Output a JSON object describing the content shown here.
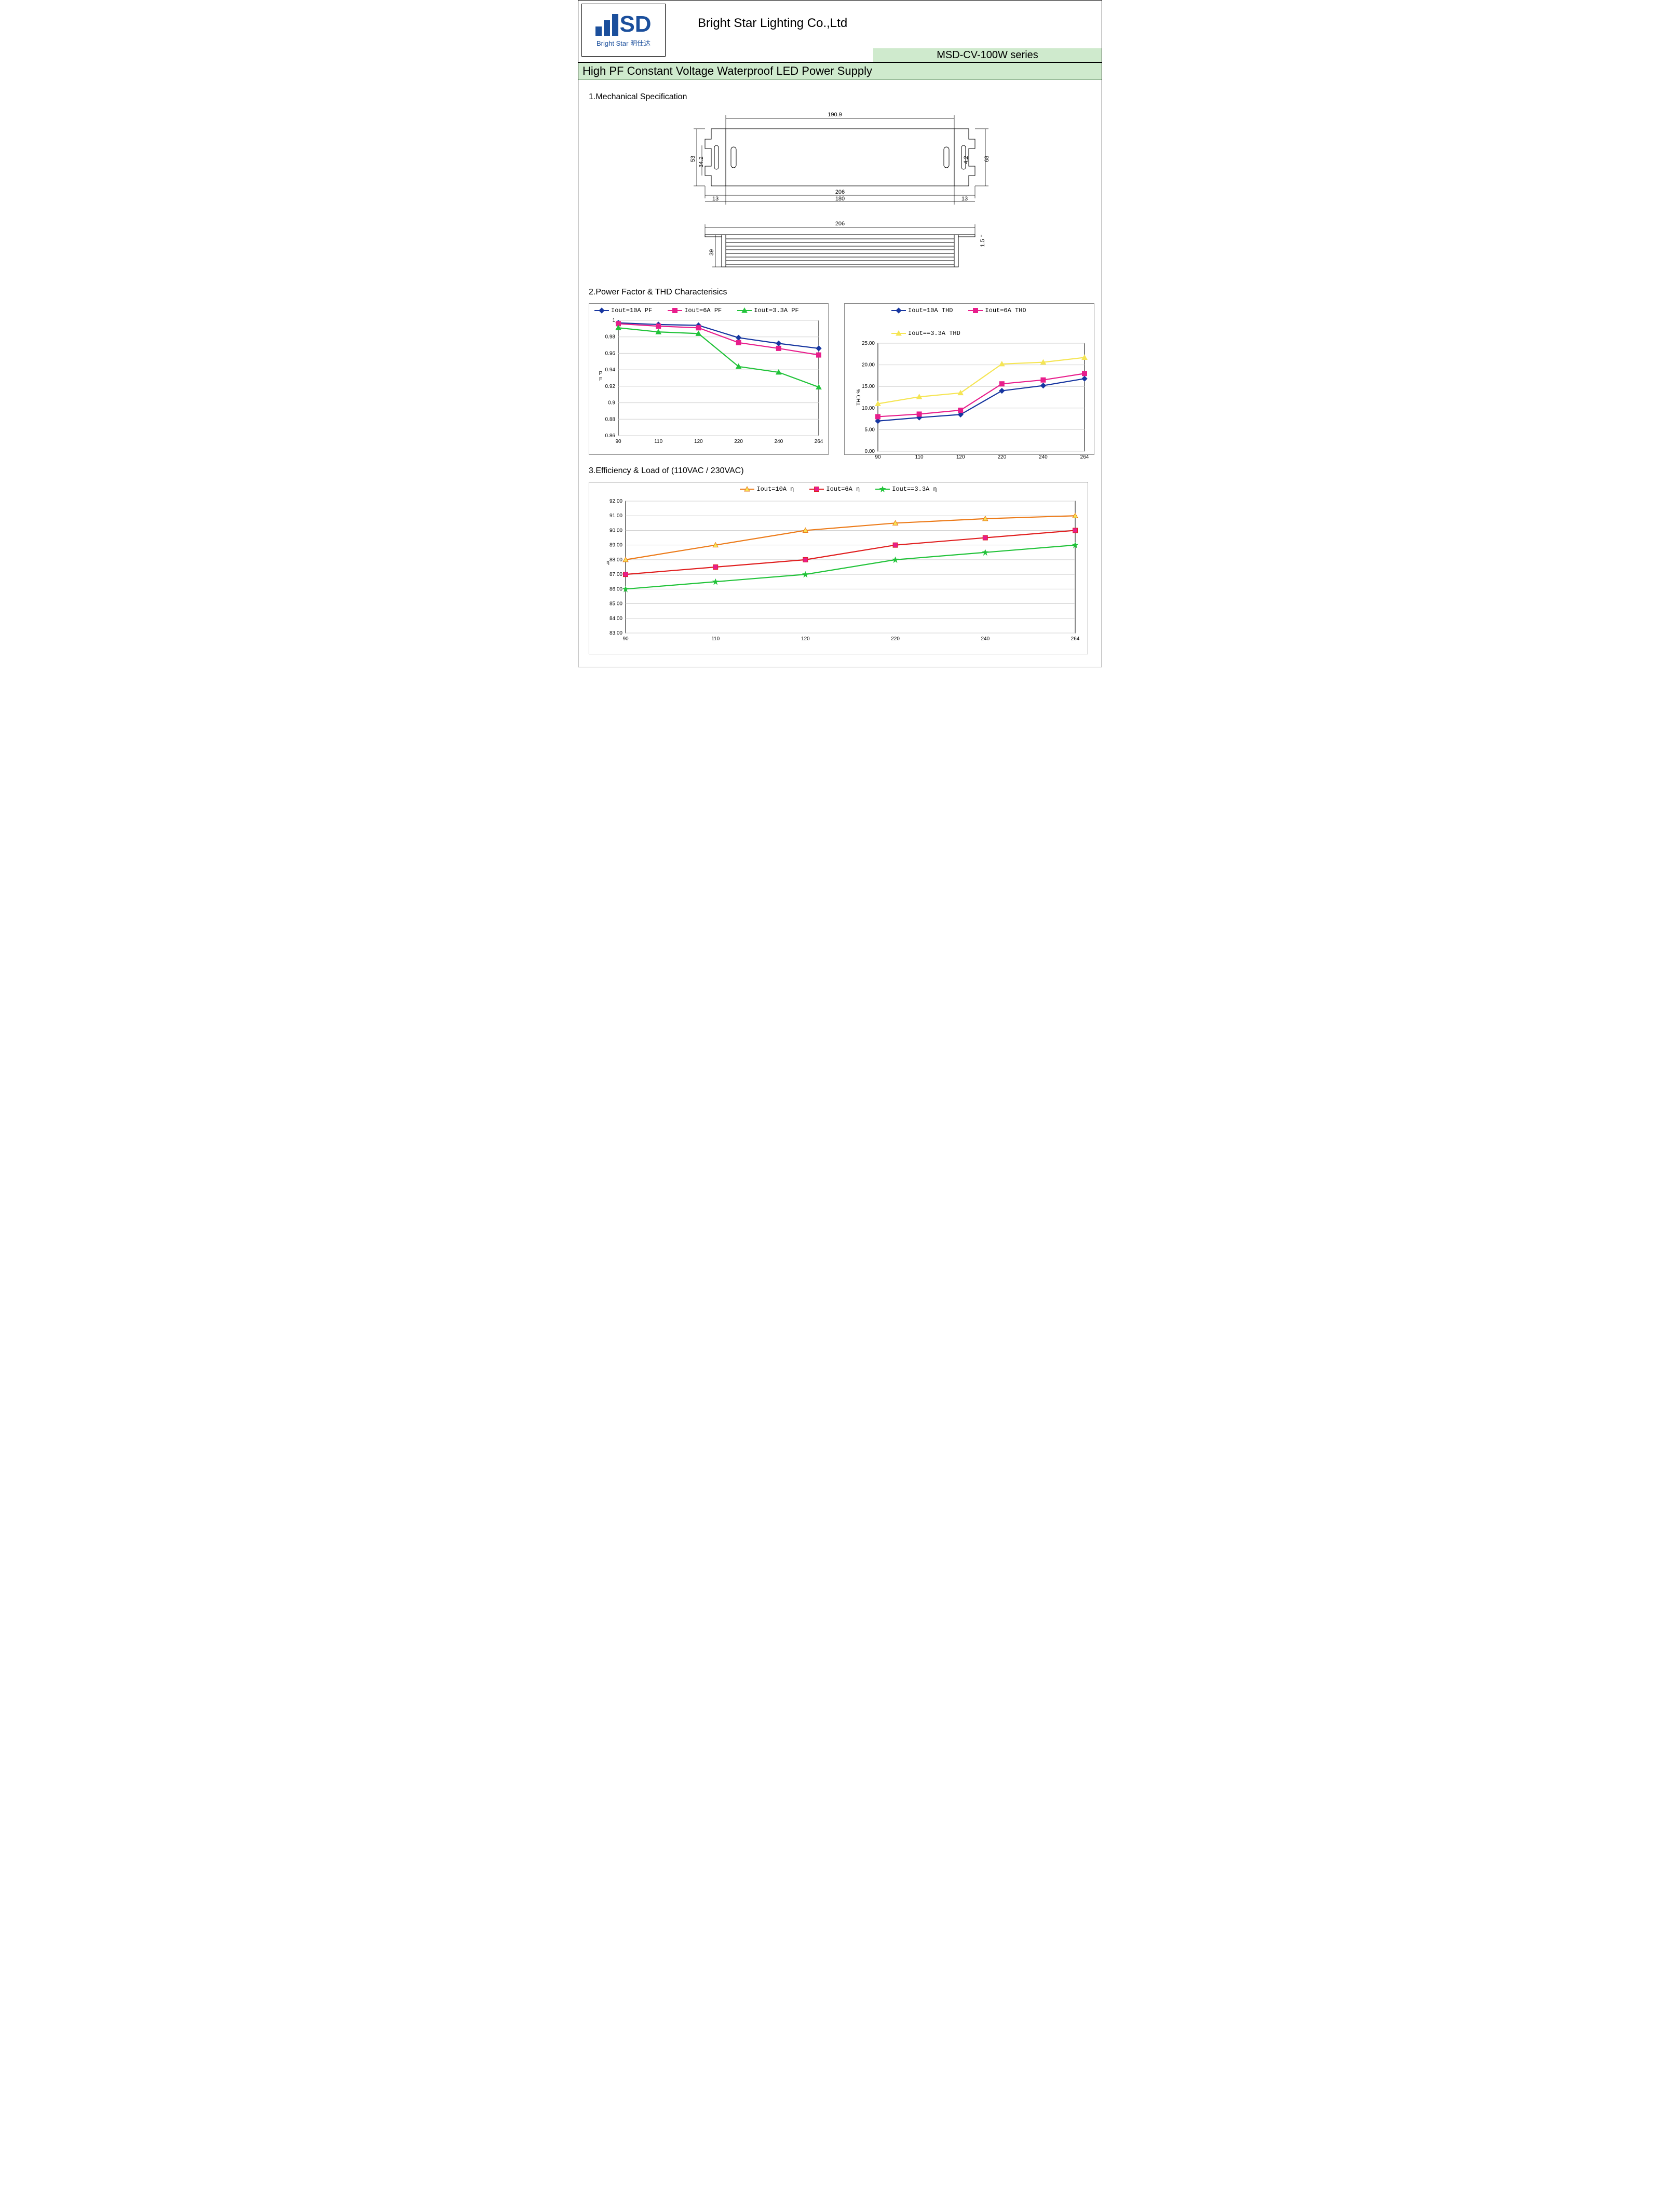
{
  "header": {
    "company": "Bright Star Lighting Co.,Ltd",
    "logo_line1_text": "SD",
    "logo_sub": "Bright Star 明仕达",
    "series": "MSD-CV-100W series"
  },
  "title": "High PF Constant Voltage Waterproof LED Power Supply",
  "sections": {
    "mech": "1.Mechanical Specification",
    "pf": "2.Power Factor & THD Characterisics",
    "eff": "3.Efficiency & Load of (110VAC / 230VAC)"
  },
  "mech_dims": {
    "top_w": "190.9",
    "inner_w": "180",
    "outer_w": "206",
    "flange": "13",
    "h": "68",
    "slot_h": "34.2",
    "full_h": "53",
    "slot_pitch": "4.2",
    "side_h": "39",
    "lip": "1.5"
  },
  "charts": {
    "x_categories": [
      "90",
      "110",
      "120",
      "220",
      "240",
      "264"
    ],
    "pf": {
      "ylabel": "P\nF",
      "yticks": [
        "0.86",
        "0.88",
        "0.9",
        "0.92",
        "0.94",
        "0.96",
        "0.98",
        "1"
      ],
      "ylim": [
        0.86,
        1.0
      ],
      "series": [
        {
          "name": "Iout=10A PF",
          "color": "#1736a0",
          "marker": "diamond",
          "data": [
            0.997,
            0.995,
            0.994,
            0.979,
            0.972,
            0.966
          ]
        },
        {
          "name": "Iout=6A PF",
          "color": "#e81e8c",
          "marker": "square",
          "data": [
            0.996,
            0.993,
            0.991,
            0.973,
            0.966,
            0.958
          ]
        },
        {
          "name": "Iout=3.3A PF",
          "color": "#22c33a",
          "marker": "triangle",
          "data": [
            0.991,
            0.986,
            0.984,
            0.944,
            0.937,
            0.919
          ]
        }
      ]
    },
    "thd": {
      "ylabel": "THD %",
      "yticks": [
        "0.00",
        "5.00",
        "10.00",
        "15.00",
        "20.00",
        "25.00"
      ],
      "ylim": [
        0,
        25
      ],
      "series": [
        {
          "name": "Iout=10A THD",
          "color": "#1736a0",
          "marker": "diamond",
          "data": [
            7.0,
            7.8,
            8.5,
            14.0,
            15.2,
            16.8
          ]
        },
        {
          "name": "Iout=6A THD",
          "color": "#e81e8c",
          "marker": "square",
          "data": [
            8.0,
            8.6,
            9.5,
            15.6,
            16.5,
            18.0
          ]
        },
        {
          "name": "Iout==3.3A THD",
          "color": "#f5e555",
          "marker": "triangle",
          "data": [
            11.0,
            12.6,
            13.5,
            20.2,
            20.6,
            21.7
          ]
        }
      ]
    },
    "eff": {
      "ylabel": "η",
      "yticks": [
        "83.00",
        "84.00",
        "85.00",
        "86.00",
        "87.00",
        "88.00",
        "89.00",
        "90.00",
        "91.00",
        "92.00"
      ],
      "ylim": [
        83,
        92
      ],
      "series": [
        {
          "name": "Iout=10A  η",
          "line": "#ec7b1a",
          "marker_fill": "#f5e555",
          "marker": "triangle",
          "data": [
            88.0,
            89.0,
            90.0,
            90.5,
            90.8,
            91.0
          ]
        },
        {
          "name": "Iout=6A  η",
          "line": "#e01f1f",
          "marker_fill": "#e81e8c",
          "marker": "square",
          "data": [
            87.0,
            87.5,
            88.0,
            89.0,
            89.5,
            90.0
          ]
        },
        {
          "name": "Iout==3.3A  η",
          "line": "#22c33a",
          "marker_fill": "#22c33a",
          "marker": "star",
          "data": [
            86.0,
            86.5,
            87.0,
            88.0,
            88.5,
            89.0
          ]
        }
      ]
    }
  },
  "style": {
    "grid_color": "#d0d0d0",
    "axis_color": "#000",
    "chart_border": "#888",
    "green_band": "#cfeacd",
    "logo_color": "#1b4f9c"
  }
}
